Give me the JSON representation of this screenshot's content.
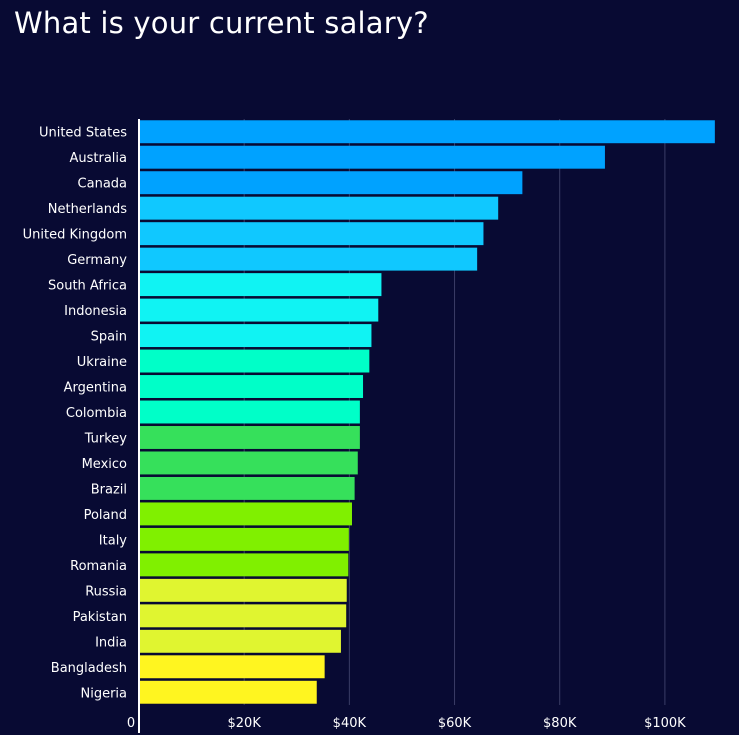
{
  "title": "What is your current salary?",
  "chart_data": {
    "type": "bar",
    "orientation": "horizontal",
    "title": "What is your current salary?",
    "xlabel": "",
    "ylabel": "",
    "xlim": [
      0,
      112000
    ],
    "grid": true,
    "categories": [
      "United States",
      "Australia",
      "Canada",
      "Netherlands",
      "United Kingdom",
      "Germany",
      "South Africa",
      "Indonesia",
      "Spain",
      "Ukraine",
      "Argentina",
      "Colombia",
      "Turkey",
      "Mexico",
      "Brazil",
      "Poland",
      "Italy",
      "Romania",
      "Russia",
      "Pakistan",
      "India",
      "Bangladesh",
      "Nigeria"
    ],
    "values": [
      109500,
      88600,
      72900,
      68300,
      65500,
      64300,
      46100,
      45500,
      44200,
      43800,
      42600,
      42000,
      42000,
      41600,
      41000,
      40500,
      39900,
      39800,
      39500,
      39400,
      38400,
      35300,
      33800
    ],
    "colors": [
      "#00a2ff",
      "#00a2ff",
      "#00a2ff",
      "#10c8ff",
      "#10c8ff",
      "#10c8ff",
      "#10f3f3",
      "#10f3f3",
      "#10f3f3",
      "#00ffc8",
      "#00ffc8",
      "#00ffc8",
      "#36e05b",
      "#36e05b",
      "#36e05b",
      "#80f000",
      "#80f000",
      "#80f000",
      "#e0f530",
      "#e0f530",
      "#e0f530",
      "#fff520",
      "#fff520"
    ],
    "ticks": [
      {
        "value": 0,
        "label": "0"
      },
      {
        "value": 20000,
        "label": "$20K"
      },
      {
        "value": 40000,
        "label": "$40K"
      },
      {
        "value": 60000,
        "label": "$60K"
      },
      {
        "value": 80000,
        "label": "$80K"
      },
      {
        "value": 100000,
        "label": "$100K"
      }
    ]
  }
}
